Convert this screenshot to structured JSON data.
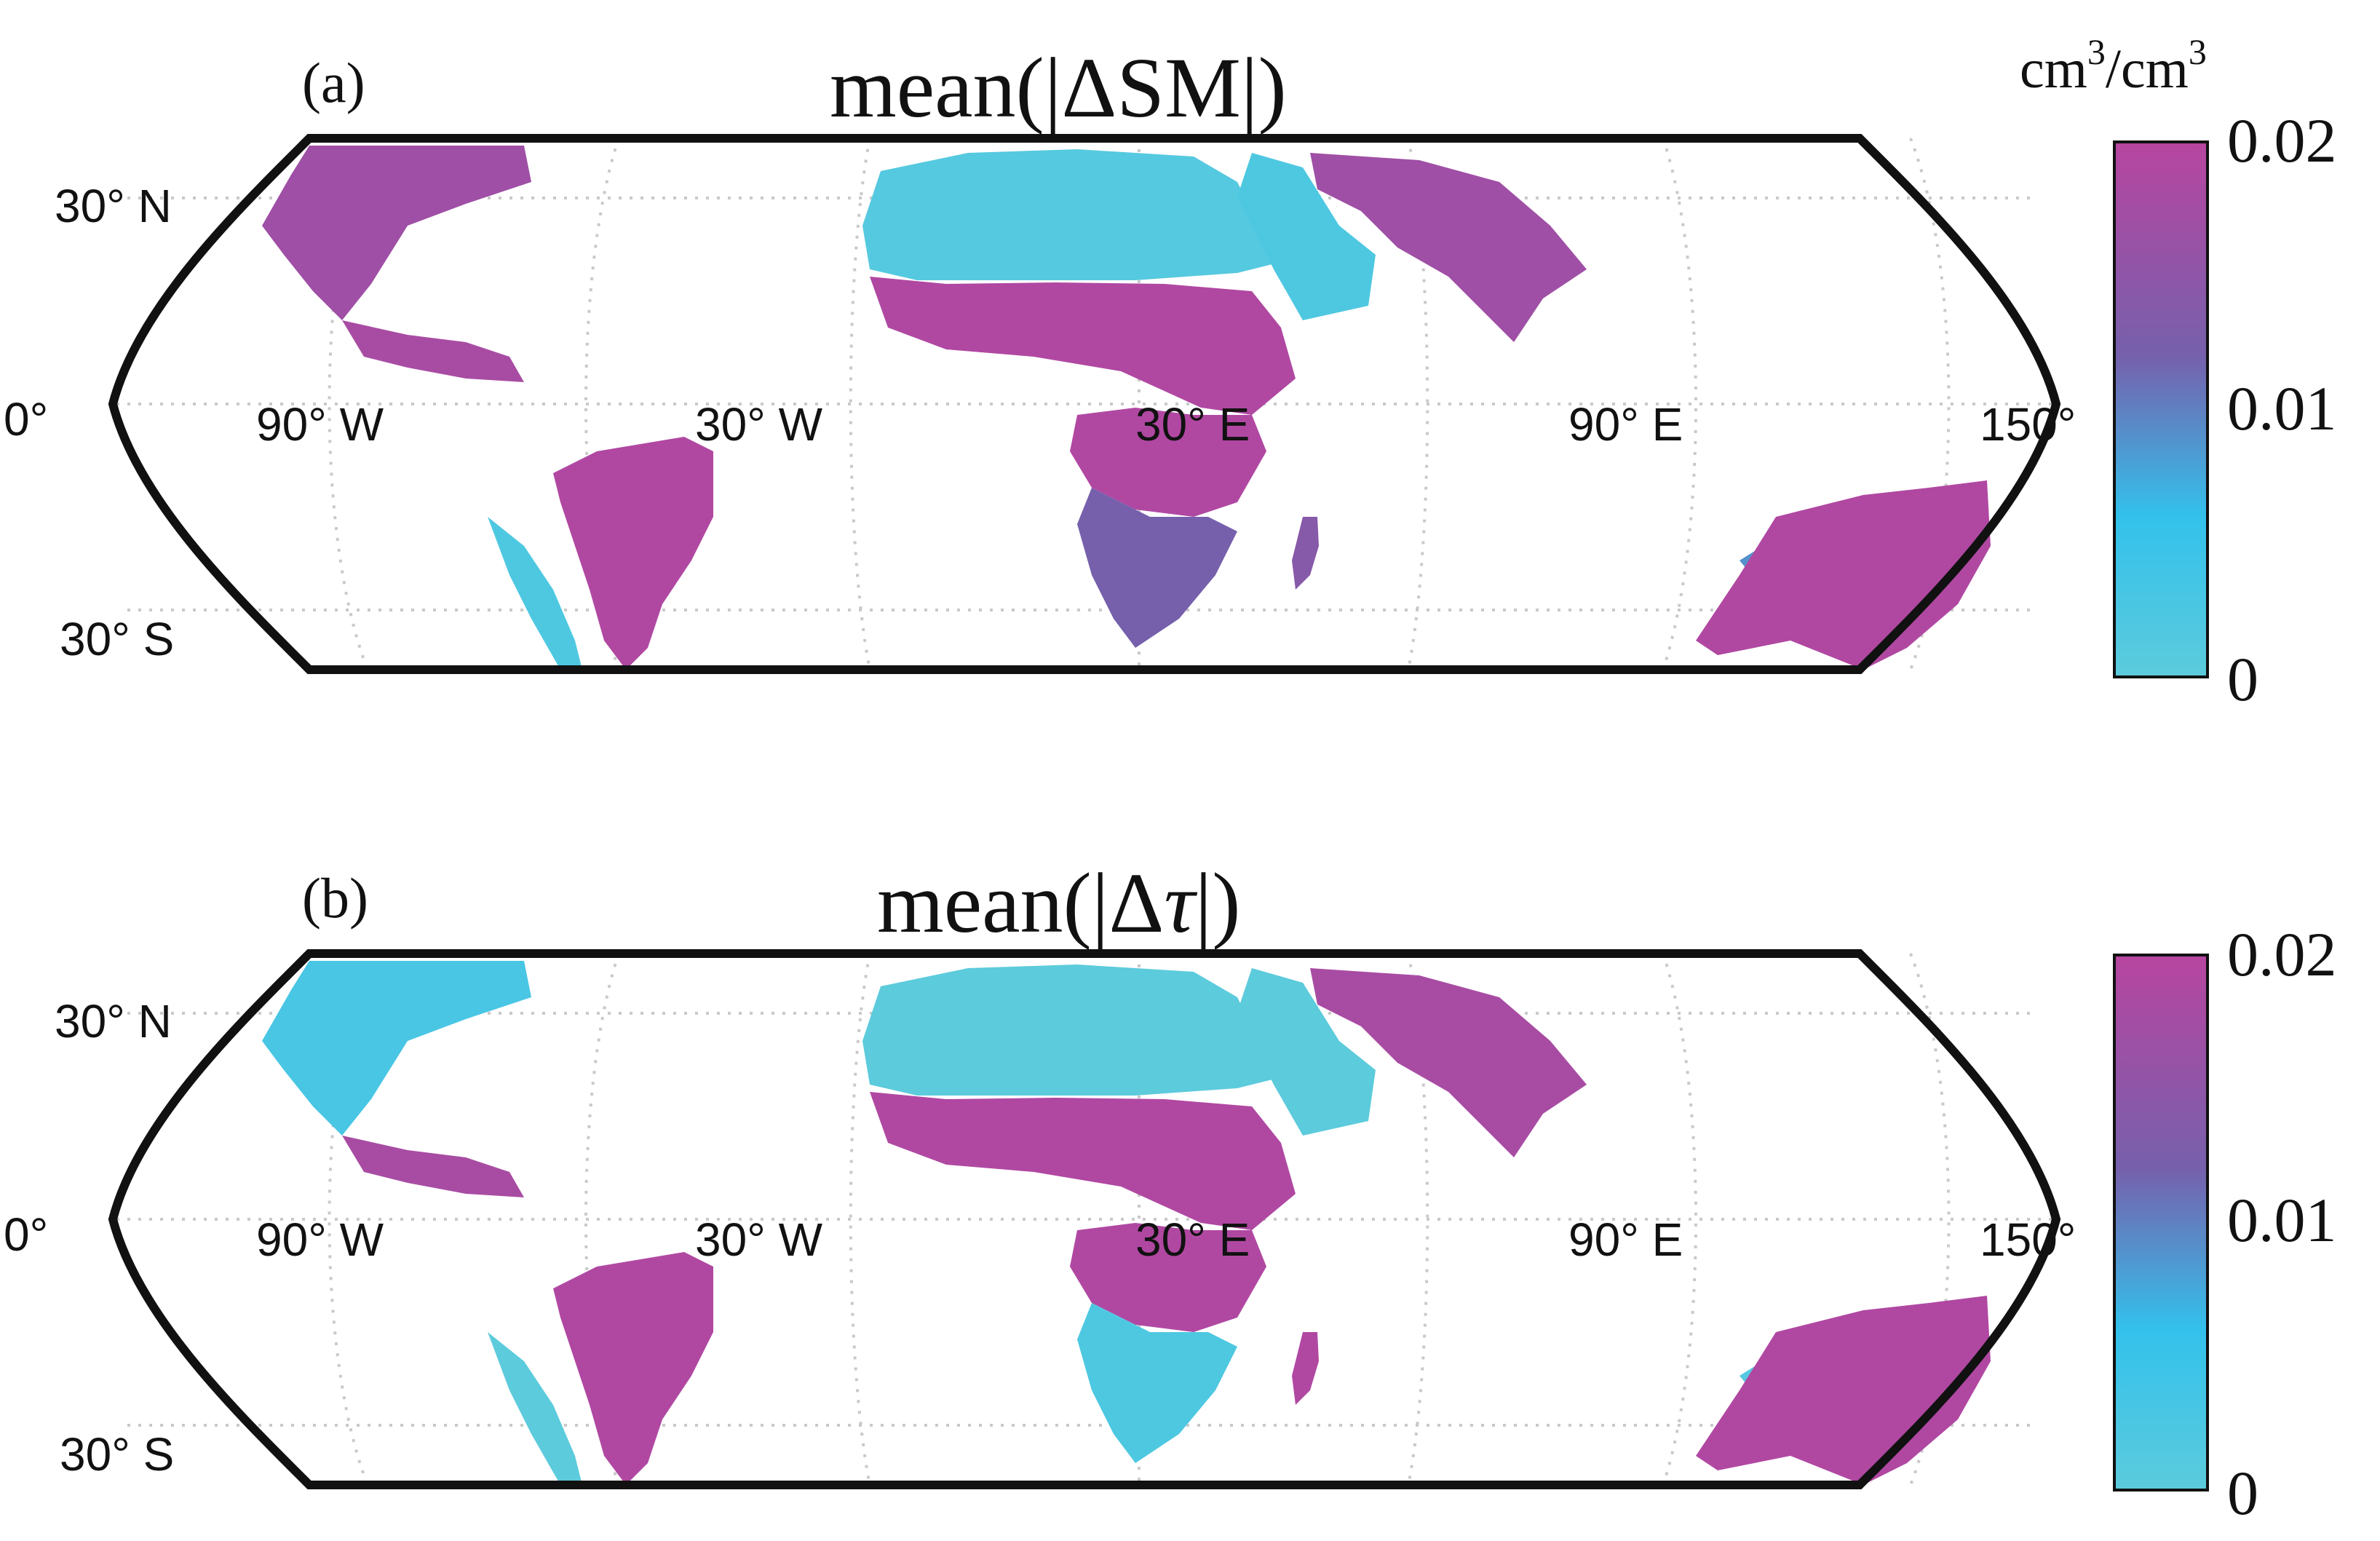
{
  "figure": {
    "panels": [
      {
        "id": "a",
        "panel_label": "(a)",
        "title": "mean(|ΔSM|)",
        "title_prefix": "mean(|Δ",
        "title_symbol": "SM",
        "title_suffix": "|)",
        "symbol_italic": false,
        "colorbar": {
          "ticks": [
            "0.02",
            "0.01",
            "0"
          ],
          "min": 0,
          "max": 0.02
        },
        "regions": [
          {
            "name": "north-america",
            "level": 0.85
          },
          {
            "name": "mexico",
            "level": 0.9
          },
          {
            "name": "north-africa-sahara",
            "level": 0.05
          },
          {
            "name": "sahel-band",
            "level": 0.95
          },
          {
            "name": "arabian-peninsula",
            "level": 0.1
          },
          {
            "name": "south-asia",
            "level": 0.85
          },
          {
            "name": "central-africa",
            "level": 0.95
          },
          {
            "name": "southern-africa",
            "level": 0.6
          },
          {
            "name": "madagascar",
            "level": 0.7
          },
          {
            "name": "south-america",
            "level": 0.95
          },
          {
            "name": "andes-desert",
            "level": 0.1
          },
          {
            "name": "australia-interior",
            "level": 0.45
          },
          {
            "name": "australia-rim",
            "level": 0.95
          }
        ]
      },
      {
        "id": "b",
        "panel_label": "(b)",
        "title": "mean(|Δτ|)",
        "title_prefix": "mean(|Δ",
        "title_symbol": "τ",
        "title_suffix": "|)",
        "symbol_italic": true,
        "colorbar": {
          "ticks": [
            "0.02",
            "0.01",
            "0"
          ],
          "min": 0,
          "max": 0.02
        },
        "regions": [
          {
            "name": "north-america",
            "level": 0.15
          },
          {
            "name": "mexico",
            "level": 0.9
          },
          {
            "name": "north-africa-sahara",
            "level": 0.0
          },
          {
            "name": "sahel-band",
            "level": 0.95
          },
          {
            "name": "arabian-peninsula",
            "level": 0.0
          },
          {
            "name": "south-asia",
            "level": 0.9
          },
          {
            "name": "central-africa",
            "level": 0.95
          },
          {
            "name": "southern-africa",
            "level": 0.1
          },
          {
            "name": "madagascar",
            "level": 0.95
          },
          {
            "name": "south-america",
            "level": 0.95
          },
          {
            "name": "andes-desert",
            "level": 0.0
          },
          {
            "name": "australia-interior",
            "level": 0.05
          },
          {
            "name": "australia-rim",
            "level": 0.95
          }
        ]
      }
    ],
    "colorbar_unit_base": "cm",
    "colorbar_unit_exp": "3",
    "colorbar_unit_sep": "/cm",
    "lat_labels": [
      "30° N",
      "0°",
      "30° S"
    ],
    "lon_labels": [
      "90° W",
      "30° W",
      "30° E",
      "90° E",
      "150°"
    ],
    "colormap": [
      "#5ccbdc",
      "#33c1ec",
      "#7660ac",
      "#b845a0"
    ]
  }
}
